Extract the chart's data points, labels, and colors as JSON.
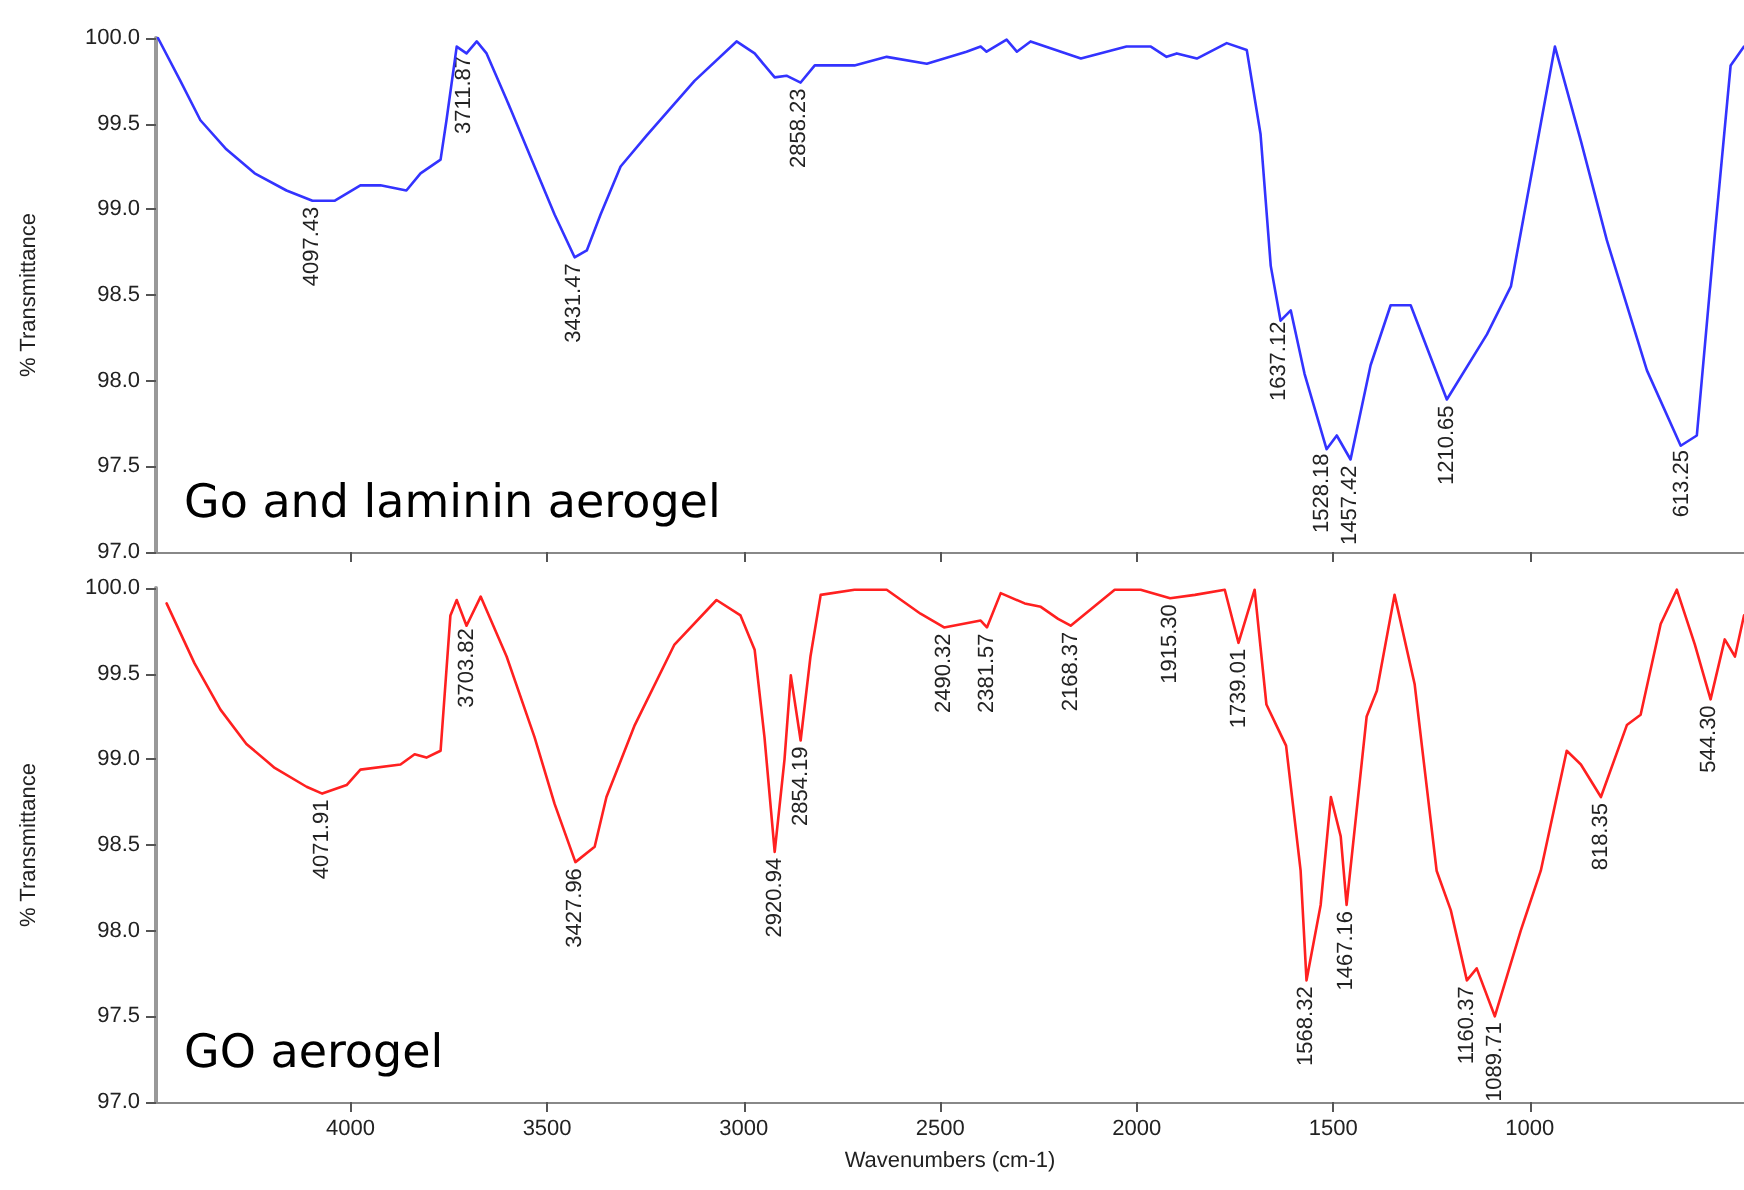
{
  "chart_data": [
    {
      "type": "line",
      "ylabel": "% Transmittance",
      "xlim": [
        4495,
        455
      ],
      "xticks": [
        4000,
        3500,
        3000,
        2500,
        2000,
        1500,
        1000
      ],
      "ylim": [
        97,
        100
      ],
      "yticks": [
        {
          "value": 97,
          "label": "97.0"
        },
        {
          "value": 97.5,
          "label": "97.5"
        },
        {
          "value": 98,
          "label": "98.0"
        },
        {
          "value": 98.5,
          "label": "98.5"
        },
        {
          "value": 99,
          "label": "99.0"
        },
        {
          "value": 99.5,
          "label": "99.5"
        },
        {
          "value": 100,
          "label": "100.0"
        }
      ],
      "grid": false,
      "tick_labels": "y",
      "annotations": [
        "Go and laminin aerogel",
        {
          "text": "4097.43",
          "x": 4097.43,
          "y": 99.05
        },
        {
          "text": "3711.87",
          "x": 3711.87,
          "y": 99.93
        },
        {
          "text": "3431.47",
          "x": 3431.47,
          "y": 98.72
        },
        {
          "text": "2858.23",
          "x": 2858.23,
          "y": 99.74
        },
        {
          "text": "1637.12",
          "x": 1637.12,
          "y": 98.38
        },
        {
          "text": "1528.18",
          "x": 1528.18,
          "y": 97.61
        },
        {
          "text": "1457.42",
          "x": 1457.42,
          "y": 97.54
        },
        {
          "text": "1210.65",
          "x": 1210.65,
          "y": 97.89
        },
        {
          "text": "613.25",
          "x": 613.25,
          "y": 97.63
        }
      ],
      "series": [
        {
          "color": "#3333ff",
          "x": [
            4490,
            4433,
            4382,
            4316,
            4244,
            4163,
            4097,
            4041,
            3975,
            3924,
            3858,
            3822,
            3771,
            3756,
            3730,
            3705,
            3679,
            3654,
            3603,
            3532,
            3481,
            3430,
            3399,
            3364,
            3313,
            3247,
            3125,
            3018,
            2972,
            2921,
            2891,
            2855,
            2819,
            2718,
            2636,
            2534,
            2433,
            2397,
            2382,
            2331,
            2305,
            2270,
            2142,
            2026,
            1964,
            1924,
            1898,
            1847,
            1771,
            1720,
            1685,
            1659,
            1634,
            1608,
            1573,
            1517,
            1491,
            1456,
            1405,
            1354,
            1303,
            1211,
            1109,
            1048,
            1008,
            936,
            870,
            804,
            702,
            616,
            575,
            529,
            489,
            455
          ],
          "values": [
            100.0,
            99.75,
            99.52,
            99.35,
            99.21,
            99.11,
            99.05,
            99.05,
            99.14,
            99.14,
            99.11,
            99.21,
            99.29,
            99.52,
            99.95,
            99.91,
            99.98,
            99.91,
            99.64,
            99.25,
            98.97,
            98.72,
            98.76,
            98.97,
            99.25,
            99.43,
            99.75,
            99.98,
            99.91,
            99.77,
            99.78,
            99.74,
            99.84,
            99.84,
            99.89,
            99.85,
            99.92,
            99.95,
            99.92,
            99.99,
            99.92,
            99.98,
            99.88,
            99.95,
            99.95,
            99.89,
            99.91,
            99.88,
            99.97,
            99.93,
            99.44,
            98.67,
            98.35,
            98.41,
            98.04,
            97.6,
            97.68,
            97.54,
            98.09,
            98.44,
            98.44,
            97.89,
            98.27,
            98.55,
            99.05,
            99.95,
            99.4,
            98.82,
            98.06,
            97.62,
            97.68,
            98.86,
            99.84,
            99.95
          ]
        }
      ]
    },
    {
      "type": "line",
      "xlabel": "Wavenumbers (cm-1)",
      "ylabel": "% Transmittance",
      "xlim": [
        4495,
        455
      ],
      "xticks": [
        4000,
        3500,
        3000,
        2500,
        2000,
        1500,
        1000
      ],
      "ylim": [
        97,
        100
      ],
      "yticks": [
        {
          "value": 97,
          "label": "97.0"
        },
        {
          "value": 97.5,
          "label": "97.5"
        },
        {
          "value": 98,
          "label": "98.0"
        },
        {
          "value": 98.5,
          "label": "98.5"
        },
        {
          "value": 99,
          "label": "99.0"
        },
        {
          "value": 99.5,
          "label": "99.5"
        },
        {
          "value": 100,
          "label": "100.0"
        }
      ],
      "grid": false,
      "annotations": [
        "GO aerogel",
        {
          "text": "4071.91",
          "x": 4071.91,
          "y": 98.8
        },
        {
          "text": "3703.82",
          "x": 3703.82,
          "y": 99.8
        },
        {
          "text": "3427.96",
          "x": 3427.96,
          "y": 98.4
        },
        {
          "text": "2920.94",
          "x": 2920.94,
          "y": 98.46
        },
        {
          "text": "2854.19",
          "x": 2854.19,
          "y": 99.11
        },
        {
          "text": "2490.32",
          "x": 2490.32,
          "y": 99.77
        },
        {
          "text": "2381.57",
          "x": 2381.57,
          "y": 99.77
        },
        {
          "text": "2168.37",
          "x": 2168.37,
          "y": 99.78
        },
        {
          "text": "1915.30",
          "x": 1915.3,
          "y": 99.94
        },
        {
          "text": "1739.01",
          "x": 1739.01,
          "y": 99.68
        },
        {
          "text": "1568.32",
          "x": 1568.32,
          "y": 97.71
        },
        {
          "text": "1467.16",
          "x": 1467.16,
          "y": 98.15
        },
        {
          "text": "1160.37",
          "x": 1160.37,
          "y": 97.71
        },
        {
          "text": "1089.71",
          "x": 1089.71,
          "y": 97.5
        },
        {
          "text": "818.35",
          "x": 818.35,
          "y": 98.78
        },
        {
          "text": "544.30",
          "x": 544.3,
          "y": 99.35
        }
      ],
      "series": [
        {
          "color": "#ff2020",
          "x": [
            4468,
            4397,
            4331,
            4265,
            4193,
            4112,
            4072,
            4010,
            3975,
            3873,
            3837,
            3807,
            3771,
            3746,
            3730,
            3705,
            3669,
            3603,
            3532,
            3481,
            3428,
            3379,
            3349,
            3277,
            3176,
            3069,
            3008,
            2972,
            2947,
            2921,
            2896,
            2880,
            2855,
            2830,
            2804,
            2718,
            2636,
            2550,
            2490,
            2397,
            2381,
            2346,
            2285,
            2244,
            2200,
            2168,
            2056,
            1990,
            1915,
            1852,
            1776,
            1741,
            1700,
            1670,
            1645,
            1620,
            1583,
            1568,
            1532,
            1506,
            1481,
            1466,
            1415,
            1389,
            1344,
            1293,
            1237,
            1201,
            1160,
            1135,
            1089,
            1023,
            972,
            906,
            870,
            819,
            753,
            718,
            667,
            626,
            580,
            540,
            504,
            478,
            455
          ],
          "values": [
            99.91,
            99.56,
            99.29,
            99.09,
            98.95,
            98.84,
            98.8,
            98.85,
            98.94,
            98.97,
            99.03,
            99.01,
            99.05,
            99.84,
            99.93,
            99.78,
            99.95,
            99.6,
            99.13,
            98.74,
            98.4,
            98.49,
            98.78,
            99.2,
            99.67,
            99.93,
            99.84,
            99.64,
            99.13,
            98.46,
            99.0,
            99.49,
            99.11,
            99.6,
            99.96,
            99.99,
            99.99,
            99.85,
            99.77,
            99.81,
            99.77,
            99.97,
            99.91,
            99.89,
            99.82,
            99.78,
            99.99,
            99.99,
            99.94,
            99.96,
            99.99,
            99.68,
            99.99,
            99.32,
            99.2,
            99.08,
            98.35,
            97.71,
            98.15,
            98.78,
            98.55,
            98.15,
            99.25,
            99.4,
            99.96,
            99.44,
            98.35,
            98.12,
            97.71,
            97.78,
            97.5,
            98.0,
            98.35,
            99.05,
            98.97,
            98.78,
            99.2,
            99.26,
            99.79,
            99.99,
            99.67,
            99.35,
            99.7,
            99.6,
            99.84
          ]
        }
      ]
    }
  ]
}
